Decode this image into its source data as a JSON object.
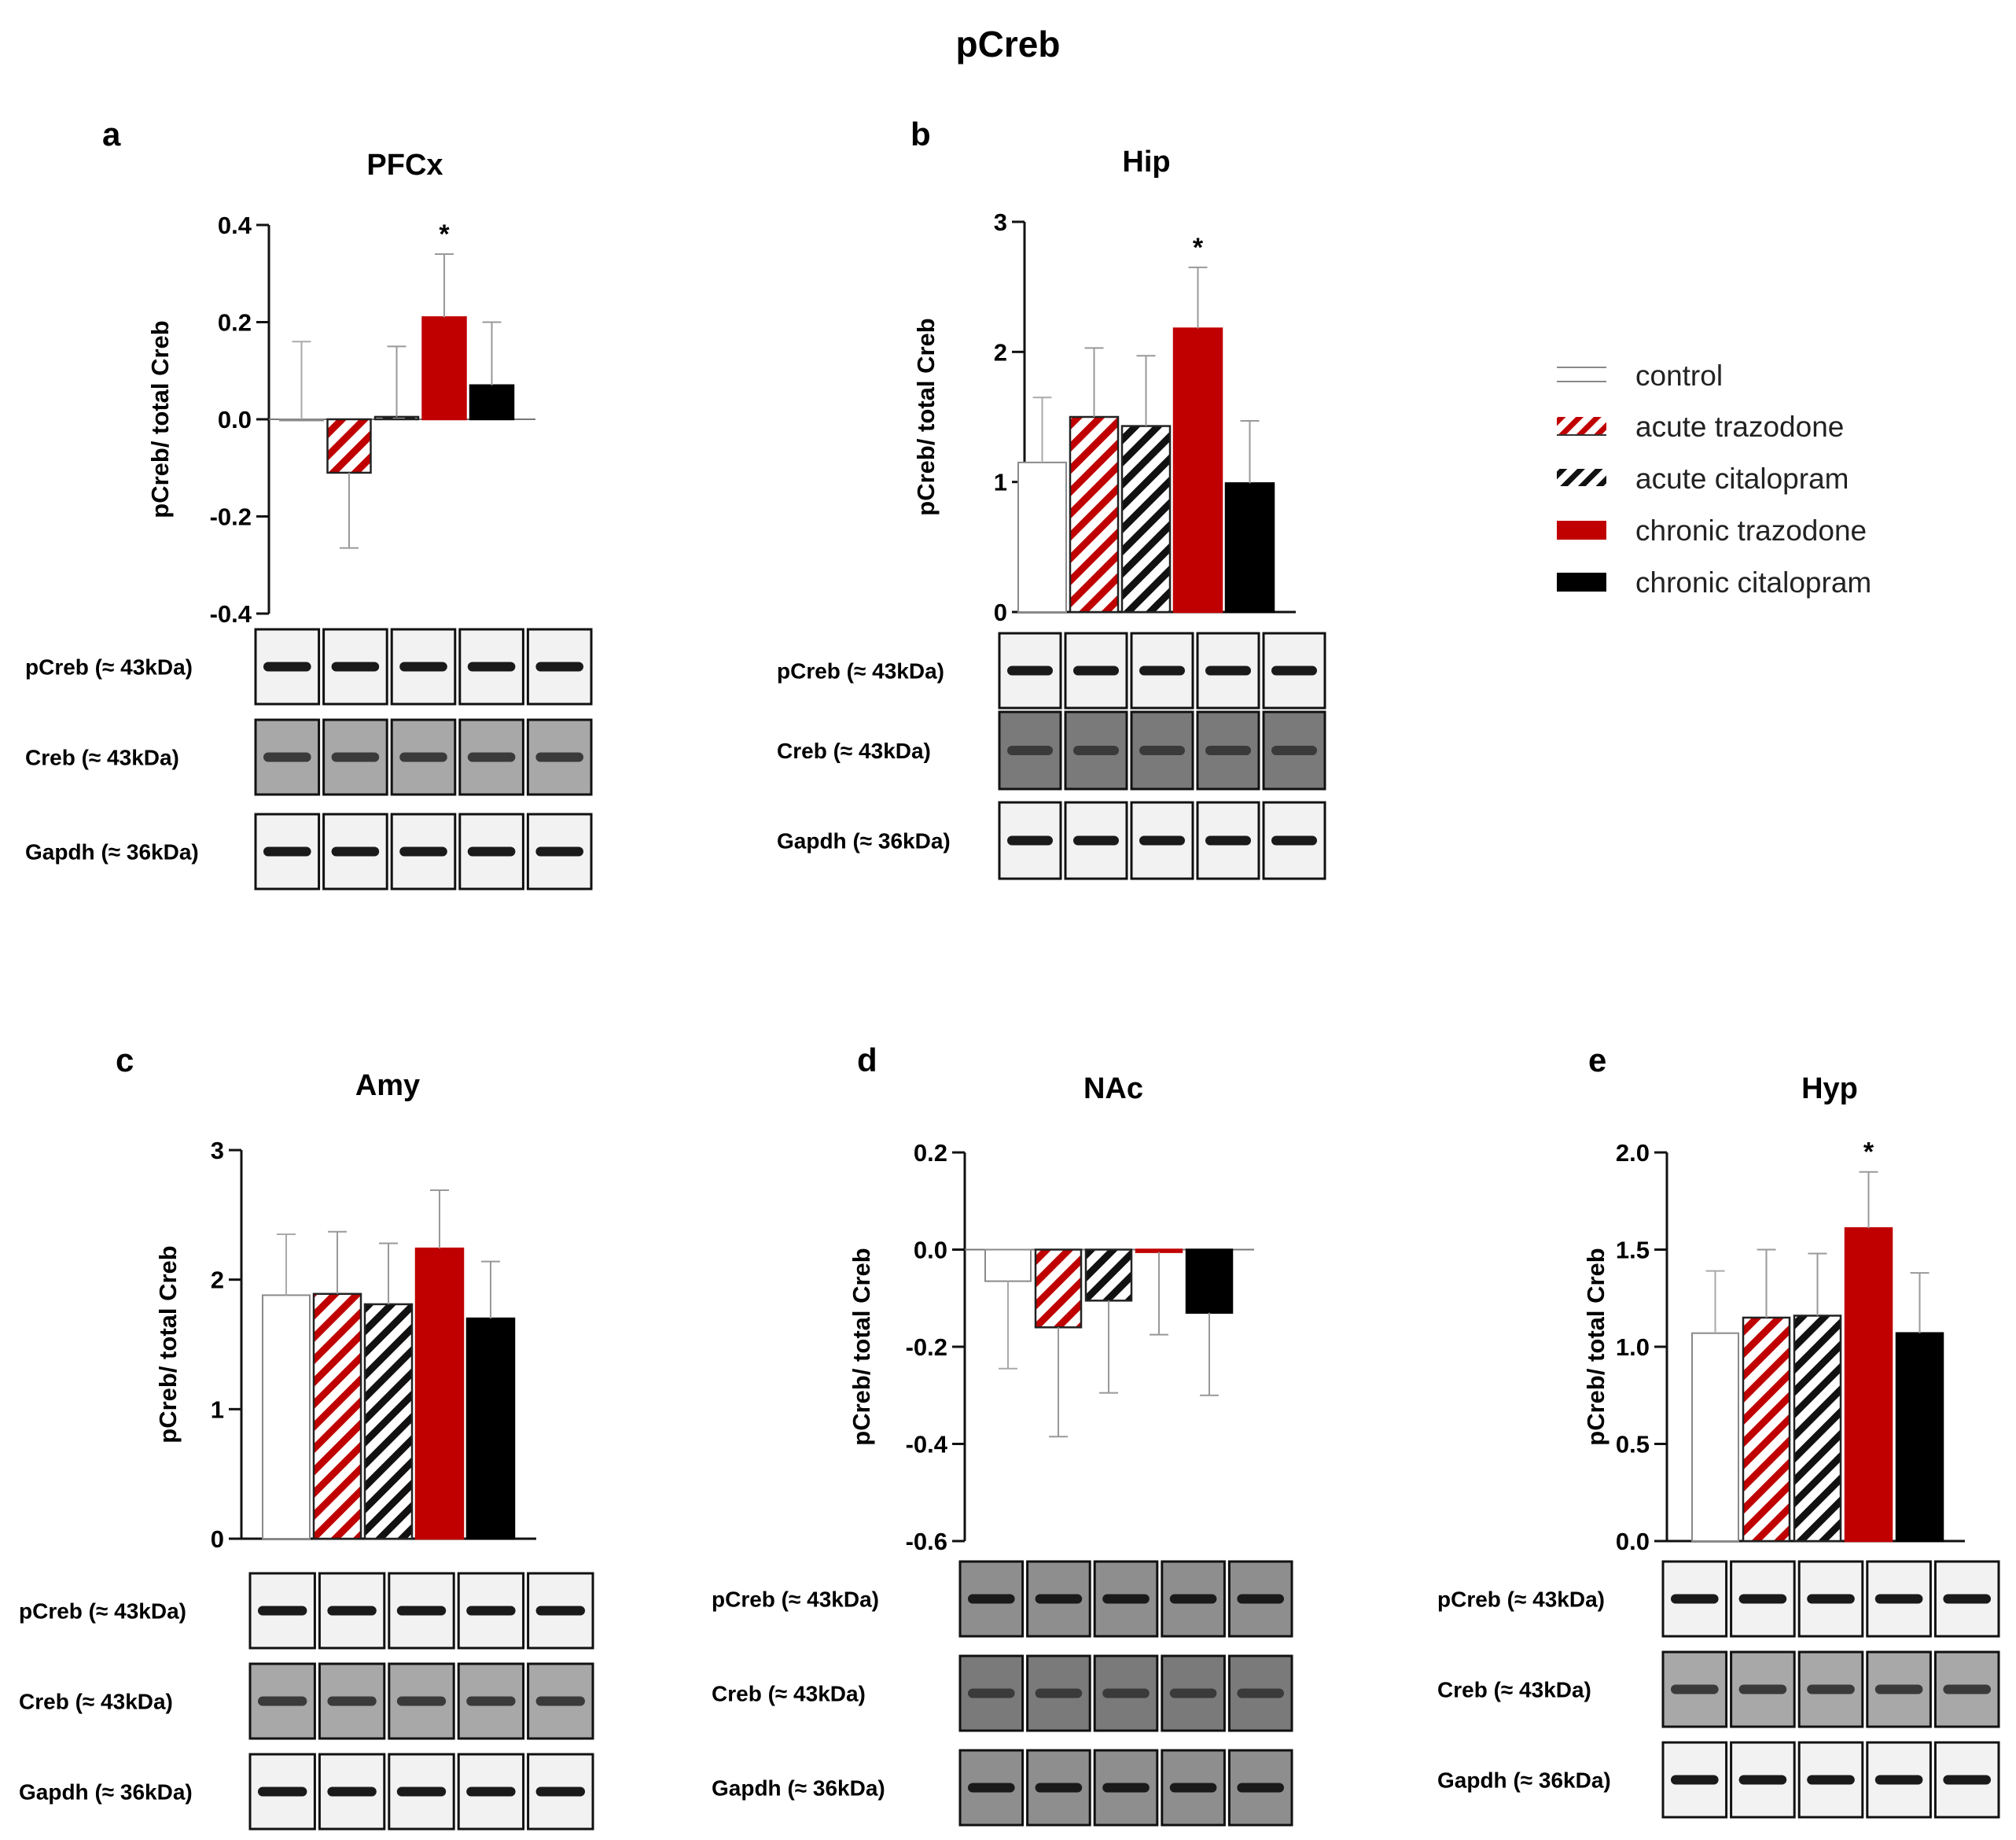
{
  "figure_title": "pCreb",
  "chart_data": [
    {
      "type": "bar",
      "panel": "a",
      "title": "PFCx",
      "ylabel": "pCreb/ total Creb",
      "ylim": [
        -0.4,
        0.4
      ],
      "yticks": [
        "0.4",
        "0.2",
        "0.0",
        "-0.2",
        "-0.4"
      ],
      "categories": [
        "control",
        "acute trazodone",
        "acute citalopram",
        "chronic trazodone",
        "chronic citalopram"
      ],
      "values": [
        0.0,
        -0.11,
        0.005,
        0.21,
        0.07
      ],
      "errors": [
        0.16,
        0.155,
        0.145,
        0.13,
        0.13
      ],
      "significance": [
        "",
        "",
        "",
        "*",
        ""
      ]
    },
    {
      "type": "bar",
      "panel": "b",
      "title": "Hip",
      "ylabel": "pCreb/ total Creb",
      "ylim": [
        0,
        3
      ],
      "yticks": [
        "3",
        "2",
        "1",
        "0"
      ],
      "categories": [
        "control",
        "acute trazodone",
        "acute citalopram",
        "chronic trazodone",
        "chronic citalopram"
      ],
      "values": [
        1.15,
        1.5,
        1.43,
        2.18,
        0.99
      ],
      "errors": [
        0.5,
        0.53,
        0.54,
        0.47,
        0.48
      ],
      "significance": [
        "",
        "",
        "",
        "*",
        ""
      ]
    },
    {
      "type": "bar",
      "panel": "c",
      "title": "Amy",
      "ylabel": "pCreb/ total Creb",
      "ylim": [
        0,
        3
      ],
      "yticks": [
        "3",
        "2",
        "1",
        "0"
      ],
      "categories": [
        "control",
        "acute trazodone",
        "acute citalopram",
        "chronic trazodone",
        "chronic citalopram"
      ],
      "values": [
        1.88,
        1.89,
        1.81,
        2.24,
        1.7
      ],
      "errors": [
        0.47,
        0.48,
        0.47,
        0.45,
        0.44
      ],
      "significance": [
        "",
        "",
        "",
        "",
        ""
      ]
    },
    {
      "type": "bar",
      "panel": "d",
      "title": "NAc",
      "ylabel": "pCreb/ total Creb",
      "ylim": [
        -0.6,
        0.2
      ],
      "yticks": [
        "0.2",
        "0.0",
        "-0.2",
        "-0.4",
        "-0.6"
      ],
      "categories": [
        "control",
        "acute trazodone",
        "acute citalopram",
        "chronic trazodone",
        "chronic citalopram"
      ],
      "values": [
        -0.065,
        -0.16,
        -0.105,
        -0.005,
        -0.13
      ],
      "errors": [
        0.18,
        0.225,
        0.19,
        0.17,
        0.17
      ],
      "significance": [
        "",
        "",
        "",
        "",
        ""
      ]
    },
    {
      "type": "bar",
      "panel": "e",
      "title": "Hyp",
      "ylabel": "pCreb/ total Creb",
      "ylim": [
        0,
        2.0
      ],
      "yticks": [
        "2.0",
        "1.5",
        "1.0",
        "0.5",
        "0.0"
      ],
      "categories": [
        "control",
        "acute trazodone",
        "acute citalopram",
        "chronic trazodone",
        "chronic citalopram"
      ],
      "values": [
        1.07,
        1.15,
        1.16,
        1.61,
        1.07
      ],
      "errors": [
        0.32,
        0.35,
        0.32,
        0.29,
        0.31
      ],
      "significance": [
        "",
        "",
        "",
        "*",
        ""
      ]
    }
  ],
  "legend": {
    "items": [
      {
        "label": "control",
        "style": "outline"
      },
      {
        "label": "acute trazodone",
        "style": "red-hatch"
      },
      {
        "label": "acute citalopram",
        "style": "black-hatch"
      },
      {
        "label": "chronic trazodone",
        "style": "red"
      },
      {
        "label": "chronic citalopram",
        "style": "black"
      }
    ]
  },
  "blot_labels": [
    "pCreb (≈ 43kDa)",
    "Creb (≈ 43kDa)",
    "Gapdh (≈ 36kDa)"
  ],
  "colors": {
    "red": "#c00000",
    "black": "#000000",
    "outline": "#888888"
  }
}
